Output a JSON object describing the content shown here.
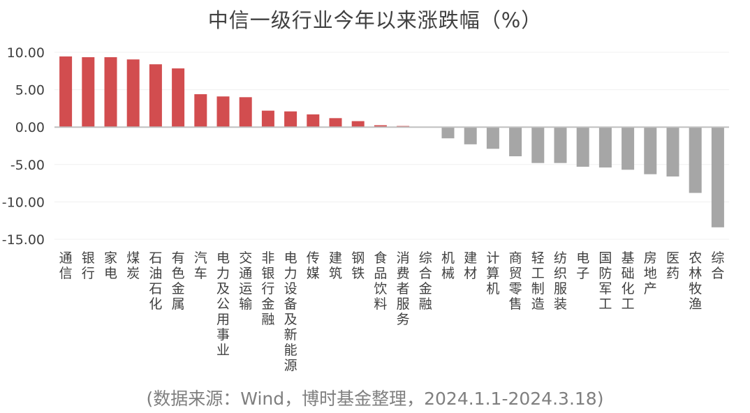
{
  "chart_data": {
    "type": "bar",
    "title": "中信一级行业今年以来涨跌幅（%）",
    "source_note": "(数据来源：Wind，博时基金整理，2024.1.1-2024.3.18)",
    "xlabel": "",
    "ylabel": "",
    "ylim": [
      -15,
      10
    ],
    "yticks": [
      "10.00",
      "5.00",
      "0.00",
      "-5.00",
      "-10.00",
      "-15.00"
    ],
    "grid": true,
    "legend": "none",
    "colors": {
      "positive": "#d24d4f",
      "negative": "#a6a6a6",
      "axis": "#bfbfbf",
      "grid": "#f0f0f0",
      "text": "#404040"
    },
    "categories": [
      "通信",
      "银行",
      "家电",
      "煤炭",
      "石油石化",
      "有色金属",
      "汽车",
      "电力及公用事业",
      "交通运输",
      "非银行金融",
      "电力设备及新能源",
      "传媒",
      "建筑",
      "钢铁",
      "食品饮料",
      "消费者服务",
      "综合金融",
      "机械",
      "建材",
      "计算机",
      "商贸零售",
      "轻工制造",
      "纺织服装",
      "电子",
      "国防军工",
      "基础化工",
      "房地产",
      "医药",
      "农林牧渔",
      "综合"
    ],
    "values": [
      9.45,
      9.35,
      9.35,
      9.05,
      8.4,
      7.85,
      4.4,
      4.1,
      4.0,
      2.2,
      2.1,
      1.7,
      1.2,
      0.8,
      0.25,
      0.15,
      0.0,
      -1.5,
      -2.3,
      -2.9,
      -3.9,
      -4.8,
      -4.8,
      -5.3,
      -5.4,
      -5.7,
      -6.3,
      -6.6,
      -8.8,
      -13.4
    ]
  }
}
